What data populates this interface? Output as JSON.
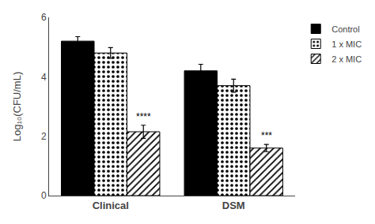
{
  "chart_data": {
    "type": "bar",
    "categories": [
      "Clinical",
      "DSM"
    ],
    "series": [
      {
        "name": "Control",
        "color": "#000000",
        "values": [
          5.2,
          4.2
        ],
        "errors": [
          0.15,
          0.22
        ]
      },
      {
        "name": "1 x MIC",
        "color": "#ffffff",
        "values": [
          4.8,
          3.7
        ],
        "errors": [
          0.18,
          0.22
        ]
      },
      {
        "name": "2 x MIC",
        "color": "#ffffff",
        "values": [
          2.15,
          1.6
        ],
        "errors": [
          0.22,
          0.12
        ]
      }
    ],
    "annotations": [
      {
        "text": "****",
        "category": "Clinical",
        "series": "2 x MIC"
      },
      {
        "text": "***",
        "category": "DSM",
        "series": "2 x MIC"
      }
    ],
    "ylabel": "Log₁₀(CFU/mL)",
    "ylim": [
      0,
      6
    ],
    "yticks": [
      0,
      2,
      4,
      6
    ],
    "grid": false,
    "legend": "right"
  }
}
